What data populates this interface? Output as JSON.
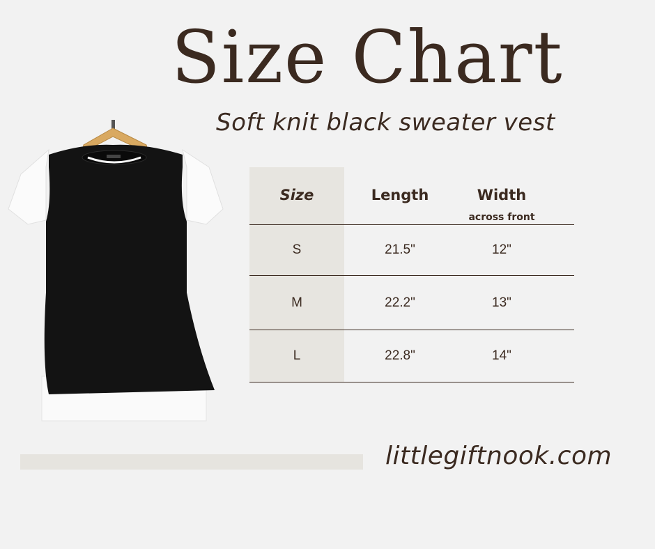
{
  "title": "Size Chart",
  "subtitle": "Soft knit black sweater vest",
  "table": {
    "headers": [
      {
        "label": "Size"
      },
      {
        "label": "Length"
      },
      {
        "label": "Width",
        "sublabel": "across front"
      }
    ],
    "rows": [
      {
        "size": "S",
        "length": "21.5\"",
        "width": "12\""
      },
      {
        "size": "M",
        "length": "22.2\"",
        "width": "13\""
      },
      {
        "size": "L",
        "length": "22.8\"",
        "width": "14\""
      }
    ]
  },
  "website": "littlegiftnook.com",
  "colors": {
    "text": "#3b2a20",
    "background": "#f2f2f2",
    "accent_shade": "#e7e5e0"
  },
  "image": "black-sweater-vest-over-white-tee-on-hanger"
}
